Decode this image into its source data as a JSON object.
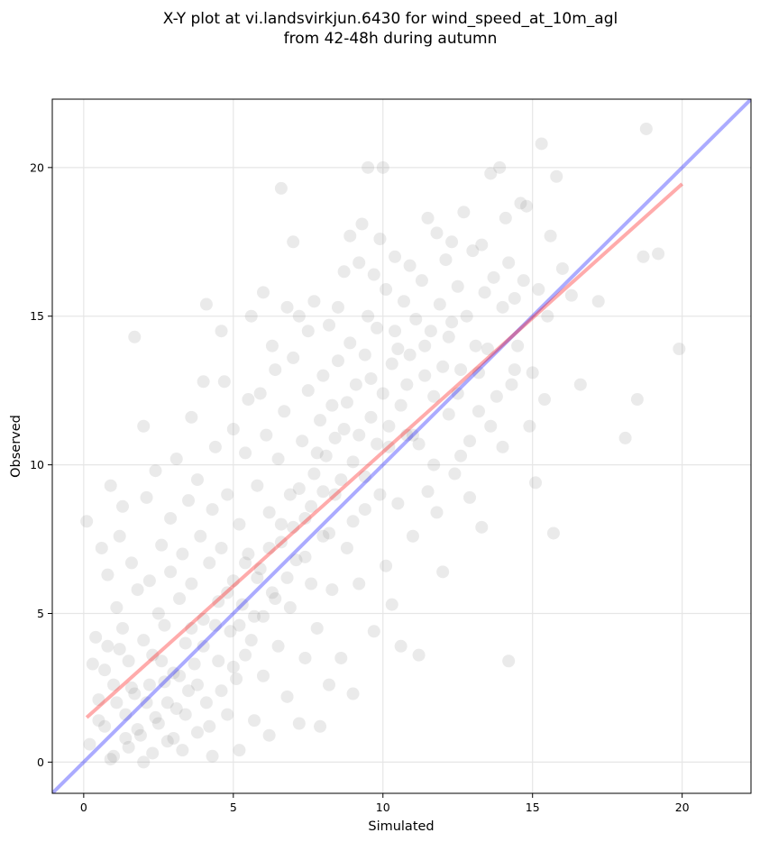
{
  "chart_data": {
    "type": "scatter",
    "title_line1": "X-Y plot at vi.landsvirkjun.6430 for wind_speed_at_10m_agl",
    "title_line2": "from 42-48h during autumn",
    "xlabel": "Simulated",
    "ylabel": "Observed",
    "xlim": [
      -1.05,
      22.3
    ],
    "ylim": [
      -1.05,
      22.3
    ],
    "xticks": [
      0,
      5,
      10,
      15,
      20
    ],
    "yticks": [
      0,
      5,
      10,
      15,
      20
    ],
    "grid": true,
    "point_color": "#808080",
    "identity_line": {
      "color": "#0000ff",
      "from": [
        -1.05,
        -1.05
      ],
      "to": [
        22.3,
        22.3
      ]
    },
    "fit_line": {
      "color": "#ff0000",
      "from": [
        0.1,
        1.5
      ],
      "to": [
        20.0,
        19.45
      ]
    },
    "points": [
      [
        0.1,
        8.1
      ],
      [
        0.2,
        0.6
      ],
      [
        0.3,
        3.3
      ],
      [
        0.4,
        4.2
      ],
      [
        0.5,
        2.1
      ],
      [
        0.6,
        7.2
      ],
      [
        0.7,
        1.2
      ],
      [
        0.8,
        3.9
      ],
      [
        0.8,
        6.3
      ],
      [
        0.9,
        9.3
      ],
      [
        1.0,
        0.2
      ],
      [
        1.0,
        2.6
      ],
      [
        1.1,
        5.2
      ],
      [
        1.2,
        7.6
      ],
      [
        1.3,
        8.6
      ],
      [
        1.3,
        4.5
      ],
      [
        1.4,
        1.6
      ],
      [
        1.5,
        0.5
      ],
      [
        1.5,
        3.4
      ],
      [
        1.6,
        6.7
      ],
      [
        1.7,
        14.3
      ],
      [
        1.7,
        2.3
      ],
      [
        1.8,
        5.8
      ],
      [
        1.9,
        0.9
      ],
      [
        2.0,
        11.3
      ],
      [
        2.0,
        4.1
      ],
      [
        2.1,
        8.9
      ],
      [
        2.1,
        2.0
      ],
      [
        2.2,
        6.1
      ],
      [
        2.3,
        0.3
      ],
      [
        2.3,
        3.6
      ],
      [
        2.4,
        9.8
      ],
      [
        2.5,
        5.0
      ],
      [
        2.5,
        1.3
      ],
      [
        2.6,
        7.3
      ],
      [
        2.7,
        2.7
      ],
      [
        2.7,
        4.6
      ],
      [
        2.8,
        0.7
      ],
      [
        2.9,
        8.2
      ],
      [
        2.9,
        6.4
      ],
      [
        3.0,
        3.0
      ],
      [
        3.1,
        10.2
      ],
      [
        3.1,
        1.8
      ],
      [
        3.2,
        5.5
      ],
      [
        3.3,
        7.0
      ],
      [
        3.3,
        0.4
      ],
      [
        3.4,
        4.0
      ],
      [
        3.5,
        8.8
      ],
      [
        3.5,
        2.4
      ],
      [
        3.6,
        11.6
      ],
      [
        3.6,
        6.0
      ],
      [
        3.7,
        3.3
      ],
      [
        3.8,
        1.0
      ],
      [
        3.8,
        9.5
      ],
      [
        3.9,
        7.6
      ],
      [
        4.0,
        12.8
      ],
      [
        4.0,
        4.8
      ],
      [
        4.1,
        15.4
      ],
      [
        4.1,
        2.0
      ],
      [
        4.2,
        6.7
      ],
      [
        4.3,
        8.5
      ],
      [
        4.3,
        0.2
      ],
      [
        4.4,
        10.6
      ],
      [
        4.5,
        5.4
      ],
      [
        4.5,
        3.4
      ],
      [
        4.6,
        14.5
      ],
      [
        4.6,
        7.2
      ],
      [
        4.7,
        12.8
      ],
      [
        4.8,
        1.6
      ],
      [
        4.8,
        9.0
      ],
      [
        4.9,
        4.4
      ],
      [
        5.0,
        6.1
      ],
      [
        5.0,
        11.2
      ],
      [
        5.1,
        2.8
      ],
      [
        5.2,
        8.0
      ],
      [
        5.2,
        0.4
      ],
      [
        5.3,
        5.3
      ],
      [
        5.4,
        10.4
      ],
      [
        5.4,
        3.6
      ],
      [
        5.5,
        12.2
      ],
      [
        5.5,
        7.0
      ],
      [
        5.6,
        15.0
      ],
      [
        5.7,
        1.4
      ],
      [
        5.7,
        4.9
      ],
      [
        5.8,
        9.3
      ],
      [
        5.9,
        12.4
      ],
      [
        5.9,
        6.5
      ],
      [
        6.0,
        15.8
      ],
      [
        6.0,
        2.9
      ],
      [
        6.1,
        11.0
      ],
      [
        6.2,
        8.4
      ],
      [
        6.2,
        0.9
      ],
      [
        6.3,
        14.0
      ],
      [
        6.3,
        5.7
      ],
      [
        6.4,
        13.2
      ],
      [
        6.5,
        10.2
      ],
      [
        6.5,
        3.9
      ],
      [
        6.6,
        7.4
      ],
      [
        6.6,
        19.3
      ],
      [
        6.7,
        11.8
      ],
      [
        6.8,
        2.2
      ],
      [
        6.8,
        15.3
      ],
      [
        6.9,
        9.0
      ],
      [
        6.9,
        5.2
      ],
      [
        7.0,
        13.6
      ],
      [
        7.0,
        17.5
      ],
      [
        7.1,
        6.8
      ],
      [
        7.2,
        15.0
      ],
      [
        7.2,
        1.3
      ],
      [
        7.3,
        10.8
      ],
      [
        7.4,
        8.2
      ],
      [
        7.4,
        3.5
      ],
      [
        7.5,
        12.5
      ],
      [
        7.5,
        14.5
      ],
      [
        7.6,
        6.0
      ],
      [
        7.7,
        9.7
      ],
      [
        7.7,
        15.5
      ],
      [
        7.8,
        4.5
      ],
      [
        7.9,
        11.5
      ],
      [
        7.9,
        1.2
      ],
      [
        8.0,
        13.0
      ],
      [
        8.0,
        7.6
      ],
      [
        8.1,
        10.3
      ],
      [
        8.2,
        14.7
      ],
      [
        8.2,
        2.6
      ],
      [
        8.3,
        12.0
      ],
      [
        8.3,
        5.8
      ],
      [
        8.4,
        9.0
      ],
      [
        8.5,
        15.3
      ],
      [
        8.5,
        13.5
      ],
      [
        8.6,
        3.5
      ],
      [
        8.7,
        11.2
      ],
      [
        8.7,
        16.5
      ],
      [
        8.8,
        7.2
      ],
      [
        8.9,
        14.1
      ],
      [
        8.9,
        17.7
      ],
      [
        9.0,
        10.1
      ],
      [
        9.0,
        2.3
      ],
      [
        9.1,
        12.7
      ],
      [
        9.2,
        16.8
      ],
      [
        9.2,
        6.0
      ],
      [
        9.3,
        18.1
      ],
      [
        9.4,
        13.7
      ],
      [
        9.4,
        8.5
      ],
      [
        9.5,
        20.0
      ],
      [
        9.5,
        15.0
      ],
      [
        9.6,
        11.6
      ],
      [
        9.7,
        4.4
      ],
      [
        9.7,
        16.4
      ],
      [
        9.8,
        14.6
      ],
      [
        9.9,
        9.0
      ],
      [
        9.9,
        17.6
      ],
      [
        10.0,
        12.4
      ],
      [
        10.0,
        20.0
      ],
      [
        10.1,
        6.6
      ],
      [
        10.1,
        15.9
      ],
      [
        10.2,
        10.6
      ],
      [
        10.3,
        13.4
      ],
      [
        10.3,
        5.3
      ],
      [
        10.4,
        17.0
      ],
      [
        10.4,
        14.5
      ],
      [
        10.5,
        8.7
      ],
      [
        10.6,
        3.9
      ],
      [
        10.6,
        12.0
      ],
      [
        10.7,
        15.5
      ],
      [
        10.8,
        11.0
      ],
      [
        10.9,
        16.7
      ],
      [
        10.9,
        13.7
      ],
      [
        11.0,
        7.6
      ],
      [
        11.1,
        14.9
      ],
      [
        11.2,
        10.7
      ],
      [
        11.2,
        3.6
      ],
      [
        11.3,
        16.2
      ],
      [
        11.4,
        13.0
      ],
      [
        11.5,
        9.1
      ],
      [
        11.5,
        18.3
      ],
      [
        11.6,
        14.5
      ],
      [
        11.7,
        12.3
      ],
      [
        11.8,
        17.8
      ],
      [
        11.8,
        8.4
      ],
      [
        11.9,
        15.4
      ],
      [
        12.0,
        13.3
      ],
      [
        12.0,
        6.4
      ],
      [
        12.1,
        16.9
      ],
      [
        12.2,
        11.7
      ],
      [
        12.3,
        17.5
      ],
      [
        12.3,
        14.8
      ],
      [
        12.4,
        9.7
      ],
      [
        12.5,
        16.0
      ],
      [
        12.6,
        13.2
      ],
      [
        12.6,
        10.3
      ],
      [
        12.7,
        18.5
      ],
      [
        12.8,
        15.0
      ],
      [
        12.9,
        8.9
      ],
      [
        13.0,
        17.2
      ],
      [
        13.1,
        14.0
      ],
      [
        13.2,
        11.8
      ],
      [
        13.3,
        17.4
      ],
      [
        13.3,
        7.9
      ],
      [
        13.4,
        15.8
      ],
      [
        13.5,
        13.9
      ],
      [
        13.6,
        19.8
      ],
      [
        13.7,
        16.3
      ],
      [
        13.8,
        12.3
      ],
      [
        13.9,
        20.0
      ],
      [
        14.0,
        15.3
      ],
      [
        14.0,
        10.6
      ],
      [
        14.1,
        18.3
      ],
      [
        14.2,
        3.4
      ],
      [
        14.2,
        16.8
      ],
      [
        14.3,
        12.7
      ],
      [
        14.4,
        15.6
      ],
      [
        14.5,
        14.0
      ],
      [
        14.6,
        18.8
      ],
      [
        14.7,
        16.2
      ],
      [
        14.8,
        18.7
      ],
      [
        14.9,
        11.3
      ],
      [
        15.0,
        13.1
      ],
      [
        15.1,
        9.4
      ],
      [
        15.2,
        15.9
      ],
      [
        15.3,
        20.8
      ],
      [
        15.4,
        12.2
      ],
      [
        15.5,
        15.0
      ],
      [
        15.6,
        17.7
      ],
      [
        15.7,
        7.7
      ],
      [
        15.8,
        19.7
      ],
      [
        16.0,
        16.6
      ],
      [
        16.3,
        15.7
      ],
      [
        16.6,
        12.7
      ],
      [
        17.2,
        15.5
      ],
      [
        18.1,
        10.9
      ],
      [
        18.5,
        12.2
      ],
      [
        18.7,
        17.0
      ],
      [
        18.8,
        21.3
      ],
      [
        19.2,
        17.1
      ],
      [
        19.9,
        13.9
      ],
      [
        0.5,
        1.4
      ],
      [
        0.7,
        3.1
      ],
      [
        0.9,
        0.1
      ],
      [
        1.1,
        2.0
      ],
      [
        1.2,
        3.8
      ],
      [
        1.4,
        0.8
      ],
      [
        1.6,
        2.5
      ],
      [
        1.8,
        1.1
      ],
      [
        2.0,
        0.0
      ],
      [
        2.2,
        2.6
      ],
      [
        2.4,
        1.5
      ],
      [
        2.6,
        3.4
      ],
      [
        2.8,
        2.0
      ],
      [
        3.0,
        0.8
      ],
      [
        3.2,
        2.9
      ],
      [
        3.4,
        1.6
      ],
      [
        3.6,
        4.5
      ],
      [
        3.8,
        2.6
      ],
      [
        4.0,
        3.9
      ],
      [
        4.2,
        1.2
      ],
      [
        4.4,
        4.6
      ],
      [
        4.6,
        2.4
      ],
      [
        4.8,
        5.7
      ],
      [
        5.0,
        3.2
      ],
      [
        5.2,
        4.6
      ],
      [
        5.4,
        6.7
      ],
      [
        5.6,
        4.1
      ],
      [
        5.8,
        6.2
      ],
      [
        6.0,
        4.9
      ],
      [
        6.2,
        7.2
      ],
      [
        6.4,
        5.5
      ],
      [
        6.6,
        8.0
      ],
      [
        6.8,
        6.2
      ],
      [
        7.0,
        7.9
      ],
      [
        7.2,
        9.2
      ],
      [
        7.4,
        6.9
      ],
      [
        7.6,
        8.6
      ],
      [
        7.8,
        10.4
      ],
      [
        8.0,
        9.1
      ],
      [
        8.2,
        7.7
      ],
      [
        8.4,
        10.9
      ],
      [
        8.6,
        9.5
      ],
      [
        8.8,
        12.1
      ],
      [
        9.0,
        8.1
      ],
      [
        9.2,
        11.0
      ],
      [
        9.4,
        9.6
      ],
      [
        9.6,
        12.9
      ],
      [
        9.8,
        10.7
      ],
      [
        10.2,
        11.3
      ],
      [
        10.5,
        13.9
      ],
      [
        10.8,
        12.7
      ],
      [
        11.0,
        11.0
      ],
      [
        11.4,
        14.0
      ],
      [
        11.7,
        10.0
      ],
      [
        12.2,
        14.3
      ],
      [
        12.5,
        12.4
      ],
      [
        12.9,
        10.8
      ],
      [
        13.2,
        13.1
      ],
      [
        13.6,
        11.3
      ],
      [
        14.4,
        13.2
      ]
    ]
  }
}
